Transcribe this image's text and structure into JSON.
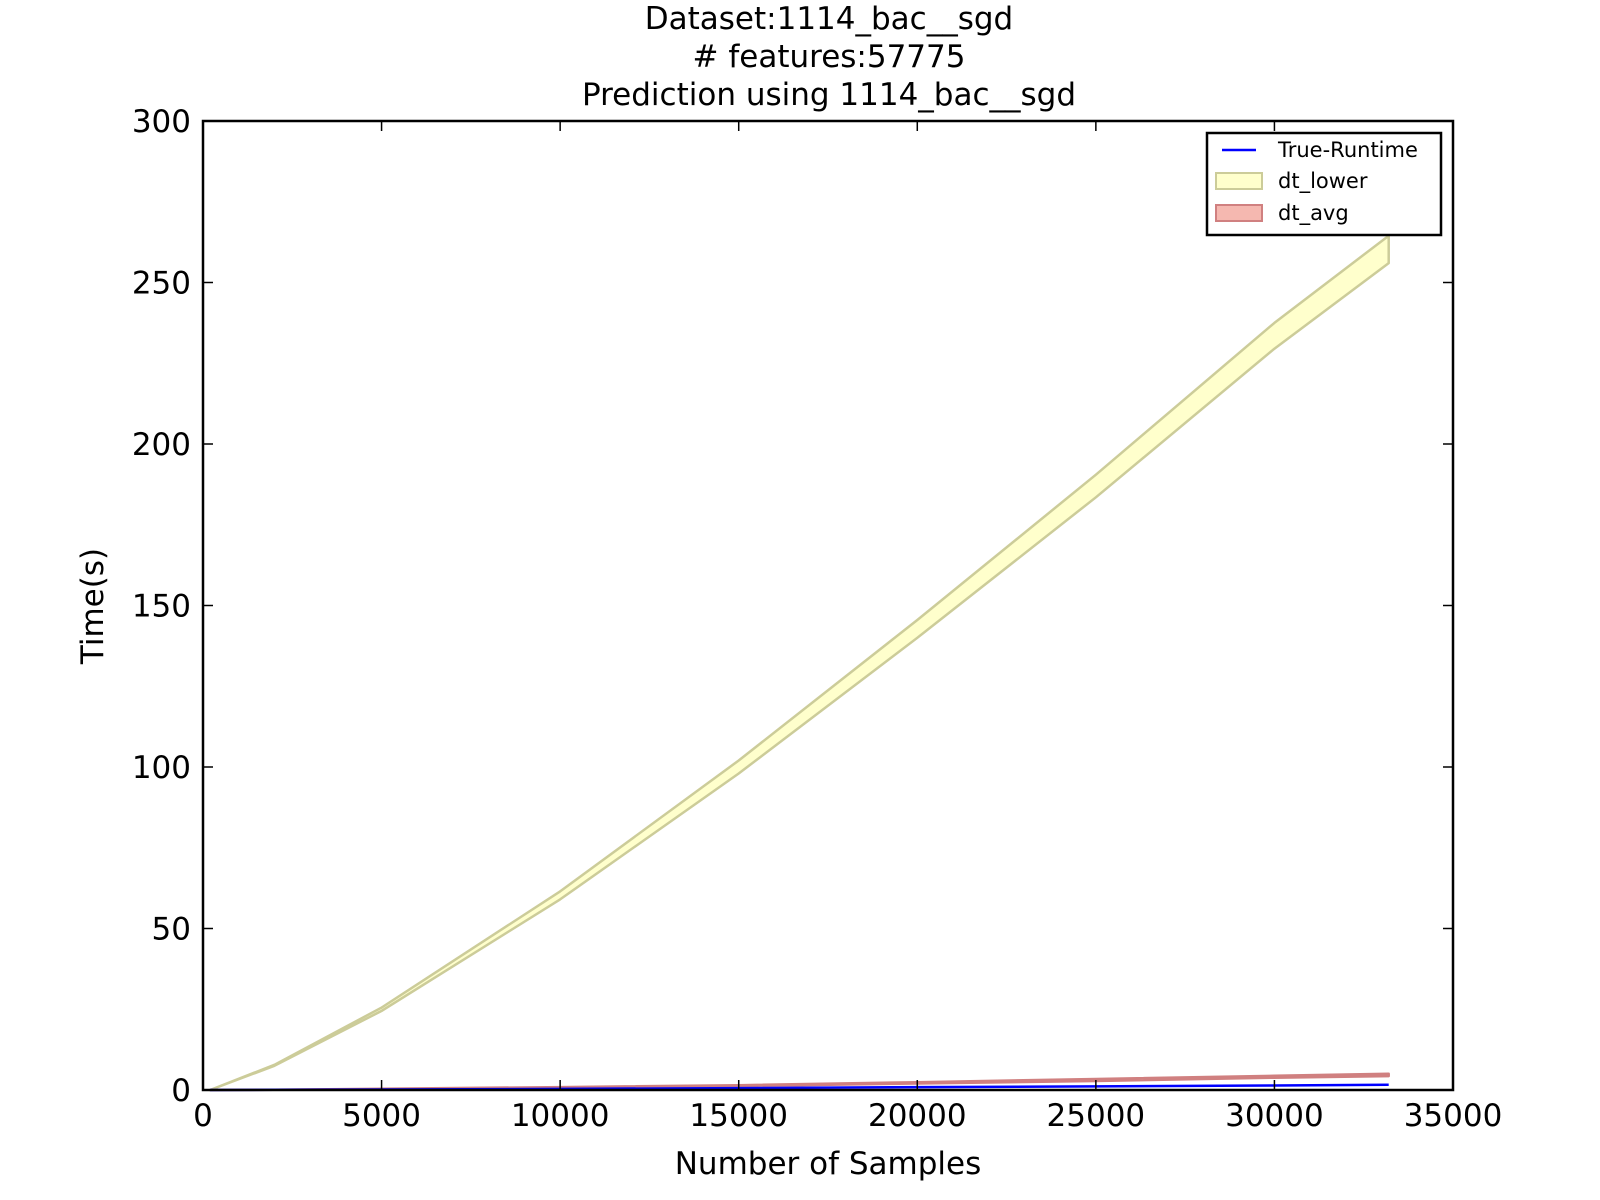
{
  "chart_data": {
    "type": "area",
    "title_lines": [
      "Dataset:1114_bac__sgd",
      "# features:57775",
      "Prediction using 1114_bac__sgd"
    ],
    "xlabel": "Number of Samples",
    "ylabel": "Time(s)",
    "xlim": [
      0,
      35000
    ],
    "ylim": [
      0,
      300
    ],
    "x_ticks": [
      0,
      5000,
      10000,
      15000,
      20000,
      25000,
      30000,
      35000
    ],
    "y_ticks": [
      0,
      50,
      100,
      150,
      200,
      250,
      300
    ],
    "grid": false,
    "legend_position": "top-right",
    "x": [
      200,
      2000,
      5000,
      10000,
      15000,
      20000,
      25000,
      30000,
      33200
    ],
    "series": [
      {
        "name": "True-Runtime",
        "kind": "line",
        "color": "#0000ff",
        "values": [
          0.0,
          0.05,
          0.15,
          0.35,
          0.6,
          0.9,
          1.1,
          1.4,
          1.6
        ]
      },
      {
        "name": "dt_lower",
        "kind": "band",
        "fill": "#ffffcc",
        "stroke": "#cccc99",
        "lower": [
          0.0,
          7.5,
          24.5,
          59.0,
          98.0,
          140.0,
          183.5,
          229.5,
          256.0
        ],
        "upper": [
          0.0,
          7.8,
          25.5,
          61.5,
          102.0,
          145.5,
          190.5,
          237.5,
          264.5
        ]
      },
      {
        "name": "dt_avg",
        "kind": "band",
        "fill": "#f5b8b0",
        "stroke": "#d08080",
        "lower": [
          0.0,
          0.05,
          0.3,
          0.7,
          1.2,
          2.0,
          2.8,
          3.8,
          4.3
        ],
        "upper": [
          0.0,
          0.1,
          0.4,
          0.9,
          1.5,
          2.4,
          3.4,
          4.4,
          5.0
        ]
      }
    ]
  }
}
